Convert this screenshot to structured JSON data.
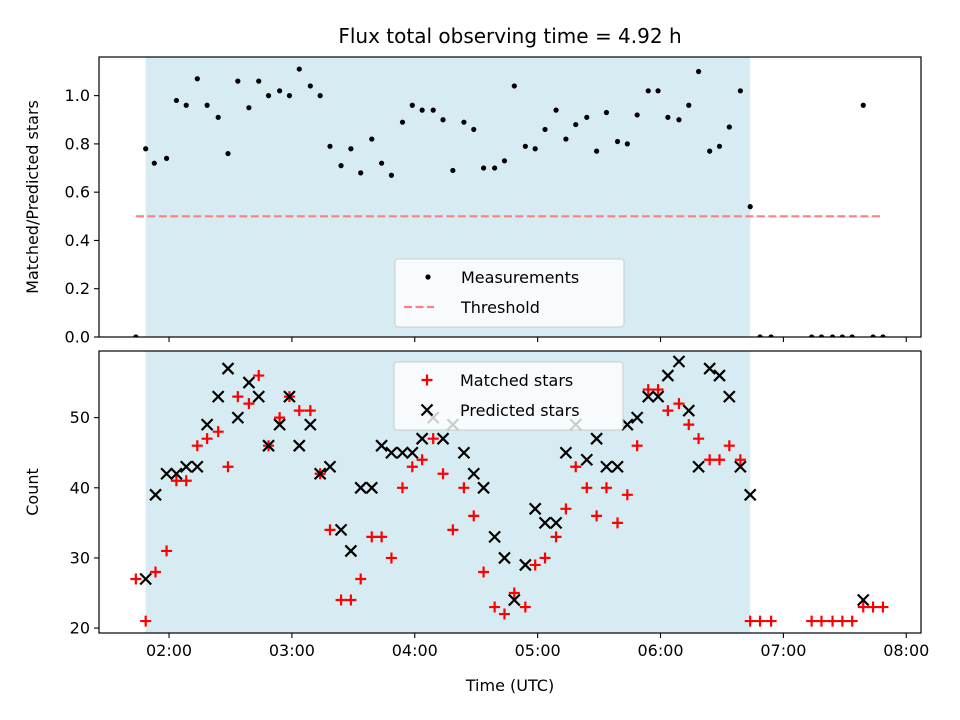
{
  "chart_data": {
    "title": "Flux total observing time = 4.92 h",
    "xlabel": "Time (UTC)",
    "x_unit": "hours (UTC)",
    "x_ticks": [
      {
        "value": 2,
        "label": "02:00"
      },
      {
        "value": 3,
        "label": "03:00"
      },
      {
        "value": 4,
        "label": "04:00"
      },
      {
        "value": 5,
        "label": "05:00"
      },
      {
        "value": 6,
        "label": "06:00"
      },
      {
        "value": 7,
        "label": "07:00"
      },
      {
        "value": 8,
        "label": "08:00"
      }
    ],
    "xlim": [
      1.43,
      8.12
    ],
    "observing_window": {
      "start": 1.81,
      "end": 6.73,
      "color": "#add8e6"
    },
    "panels": [
      {
        "type": "scatter",
        "ylabel": "Matched/Predicted stars",
        "ylim": [
          0,
          1.16
        ],
        "y_ticks": [
          {
            "value": 0.0,
            "label": "0.0"
          },
          {
            "value": 0.2,
            "label": "0.2"
          },
          {
            "value": 0.4,
            "label": "0.4"
          },
          {
            "value": 0.6,
            "label": "0.6"
          },
          {
            "value": 0.8,
            "label": "0.8"
          },
          {
            "value": 1.0,
            "label": "1.0"
          }
        ],
        "legend_position": "bottom-center",
        "legend": [
          {
            "label": "Measurements",
            "marker": "dot",
            "color": "#000000"
          },
          {
            "label": "Threshold",
            "marker": "dashed-line",
            "color": "#ff7f7f"
          }
        ],
        "threshold": {
          "y": 0.5,
          "x_start": 1.73,
          "x_end": 7.81
        },
        "series": [
          {
            "name": "Measurements",
            "color": "#000000",
            "points": [
              [
                1.73,
                0.0
              ],
              [
                1.81,
                0.78
              ],
              [
                1.88,
                0.72
              ],
              [
                1.98,
                0.74
              ],
              [
                2.06,
                0.98
              ],
              [
                2.14,
                0.96
              ],
              [
                2.23,
                1.07
              ],
              [
                2.31,
                0.96
              ],
              [
                2.4,
                0.91
              ],
              [
                2.48,
                0.76
              ],
              [
                2.56,
                1.06
              ],
              [
                2.65,
                0.95
              ],
              [
                2.73,
                1.06
              ],
              [
                2.81,
                1.0
              ],
              [
                2.9,
                1.02
              ],
              [
                2.98,
                1.0
              ],
              [
                3.06,
                1.11
              ],
              [
                3.15,
                1.04
              ],
              [
                3.23,
                1.0
              ],
              [
                3.31,
                0.79
              ],
              [
                3.4,
                0.71
              ],
              [
                3.48,
                0.78
              ],
              [
                3.56,
                0.68
              ],
              [
                3.65,
                0.82
              ],
              [
                3.73,
                0.72
              ],
              [
                3.81,
                0.67
              ],
              [
                3.9,
                0.89
              ],
              [
                3.98,
                0.96
              ],
              [
                4.06,
                0.94
              ],
              [
                4.15,
                0.94
              ],
              [
                4.23,
                0.9
              ],
              [
                4.31,
                0.69
              ],
              [
                4.4,
                0.89
              ],
              [
                4.48,
                0.86
              ],
              [
                4.56,
                0.7
              ],
              [
                4.65,
                0.7
              ],
              [
                4.73,
                0.73
              ],
              [
                4.81,
                1.04
              ],
              [
                4.9,
                0.79
              ],
              [
                4.98,
                0.78
              ],
              [
                5.06,
                0.86
              ],
              [
                5.15,
                0.94
              ],
              [
                5.23,
                0.82
              ],
              [
                5.31,
                0.88
              ],
              [
                5.4,
                0.91
              ],
              [
                5.48,
                0.77
              ],
              [
                5.56,
                0.93
              ],
              [
                5.65,
                0.81
              ],
              [
                5.73,
                0.8
              ],
              [
                5.81,
                0.92
              ],
              [
                5.9,
                1.02
              ],
              [
                5.98,
                1.02
              ],
              [
                6.06,
                0.91
              ],
              [
                6.15,
                0.9
              ],
              [
                6.23,
                0.96
              ],
              [
                6.31,
                1.1
              ],
              [
                6.4,
                0.77
              ],
              [
                6.48,
                0.79
              ],
              [
                6.56,
                0.87
              ],
              [
                6.65,
                1.02
              ],
              [
                6.73,
                0.54
              ],
              [
                6.81,
                0.0
              ],
              [
                6.9,
                0.0
              ],
              [
                7.23,
                0.0
              ],
              [
                7.31,
                0.0
              ],
              [
                7.4,
                0.0
              ],
              [
                7.48,
                0.0
              ],
              [
                7.56,
                0.0
              ],
              [
                7.65,
                0.96
              ],
              [
                7.73,
                0.0
              ],
              [
                7.81,
                0.0
              ]
            ]
          }
        ]
      },
      {
        "type": "scatter",
        "ylabel": "Count",
        "ylim": [
          19.3,
          59.5
        ],
        "y_ticks": [
          {
            "value": 20,
            "label": "20"
          },
          {
            "value": 30,
            "label": "30"
          },
          {
            "value": 40,
            "label": "40"
          },
          {
            "value": 50,
            "label": "50"
          }
        ],
        "legend_position": "top-center",
        "legend": [
          {
            "label": "Matched stars",
            "marker": "plus",
            "color": "#ff0000"
          },
          {
            "label": "Predicted stars",
            "marker": "x",
            "color": "#000000"
          }
        ],
        "series": [
          {
            "name": "Matched stars",
            "color": "#ff0000",
            "marker": "plus",
            "points": [
              [
                1.73,
                27
              ],
              [
                1.81,
                21
              ],
              [
                1.89,
                28
              ],
              [
                1.98,
                31
              ],
              [
                2.06,
                41
              ],
              [
                2.14,
                41
              ],
              [
                2.23,
                46
              ],
              [
                2.31,
                47
              ],
              [
                2.4,
                48
              ],
              [
                2.48,
                43
              ],
              [
                2.56,
                53
              ],
              [
                2.65,
                52
              ],
              [
                2.73,
                56
              ],
              [
                2.81,
                46
              ],
              [
                2.9,
                50
              ],
              [
                2.98,
                53
              ],
              [
                3.06,
                51
              ],
              [
                3.15,
                51
              ],
              [
                3.23,
                42
              ],
              [
                3.31,
                34
              ],
              [
                3.4,
                24
              ],
              [
                3.48,
                24
              ],
              [
                3.56,
                27
              ],
              [
                3.65,
                33
              ],
              [
                3.73,
                33
              ],
              [
                3.81,
                30
              ],
              [
                3.9,
                40
              ],
              [
                3.98,
                43
              ],
              [
                4.06,
                44
              ],
              [
                4.15,
                47
              ],
              [
                4.23,
                42
              ],
              [
                4.31,
                34
              ],
              [
                4.4,
                40
              ],
              [
                4.48,
                36
              ],
              [
                4.56,
                28
              ],
              [
                4.65,
                23
              ],
              [
                4.73,
                22
              ],
              [
                4.81,
                25
              ],
              [
                4.9,
                23
              ],
              [
                4.98,
                29
              ],
              [
                5.06,
                30
              ],
              [
                5.15,
                33
              ],
              [
                5.23,
                37
              ],
              [
                5.31,
                43
              ],
              [
                5.4,
                40
              ],
              [
                5.48,
                36
              ],
              [
                5.56,
                40
              ],
              [
                5.65,
                35
              ],
              [
                5.73,
                39
              ],
              [
                5.81,
                46
              ],
              [
                5.9,
                54
              ],
              [
                5.98,
                54
              ],
              [
                6.06,
                51
              ],
              [
                6.15,
                52
              ],
              [
                6.23,
                49
              ],
              [
                6.31,
                47
              ],
              [
                6.4,
                44
              ],
              [
                6.48,
                44
              ],
              [
                6.56,
                46
              ],
              [
                6.65,
                44
              ],
              [
                6.73,
                21
              ],
              [
                6.81,
                21
              ],
              [
                6.9,
                21
              ],
              [
                7.23,
                21
              ],
              [
                7.31,
                21
              ],
              [
                7.4,
                21
              ],
              [
                7.48,
                21
              ],
              [
                7.56,
                21
              ],
              [
                7.65,
                23
              ],
              [
                7.73,
                23
              ],
              [
                7.81,
                23
              ]
            ]
          },
          {
            "name": "Predicted stars",
            "color": "#000000",
            "marker": "x",
            "points": [
              [
                1.81,
                27
              ],
              [
                1.89,
                39
              ],
              [
                1.98,
                42
              ],
              [
                2.06,
                42
              ],
              [
                2.14,
                43
              ],
              [
                2.23,
                43
              ],
              [
                2.31,
                49
              ],
              [
                2.4,
                53
              ],
              [
                2.48,
                57
              ],
              [
                2.56,
                50
              ],
              [
                2.65,
                55
              ],
              [
                2.73,
                53
              ],
              [
                2.81,
                46
              ],
              [
                2.9,
                49
              ],
              [
                2.98,
                53
              ],
              [
                3.06,
                46
              ],
              [
                3.15,
                49
              ],
              [
                3.23,
                42
              ],
              [
                3.31,
                43
              ],
              [
                3.4,
                34
              ],
              [
                3.48,
                31
              ],
              [
                3.56,
                40
              ],
              [
                3.65,
                40
              ],
              [
                3.73,
                46
              ],
              [
                3.81,
                45
              ],
              [
                3.9,
                45
              ],
              [
                3.98,
                45
              ],
              [
                4.06,
                47
              ],
              [
                4.15,
                50
              ],
              [
                4.23,
                47
              ],
              [
                4.31,
                49
              ],
              [
                4.4,
                45
              ],
              [
                4.48,
                42
              ],
              [
                4.56,
                40
              ],
              [
                4.65,
                33
              ],
              [
                4.73,
                30
              ],
              [
                4.81,
                24
              ],
              [
                4.9,
                29
              ],
              [
                4.98,
                37
              ],
              [
                5.06,
                35
              ],
              [
                5.15,
                35
              ],
              [
                5.23,
                45
              ],
              [
                5.31,
                49
              ],
              [
                5.4,
                44
              ],
              [
                5.48,
                47
              ],
              [
                5.56,
                43
              ],
              [
                5.65,
                43
              ],
              [
                5.73,
                49
              ],
              [
                5.81,
                50
              ],
              [
                5.9,
                53
              ],
              [
                5.98,
                53
              ],
              [
                6.06,
                56
              ],
              [
                6.15,
                58
              ],
              [
                6.23,
                51
              ],
              [
                6.31,
                43
              ],
              [
                6.4,
                57
              ],
              [
                6.48,
                56
              ],
              [
                6.56,
                53
              ],
              [
                6.65,
                43
              ],
              [
                6.73,
                39
              ],
              [
                7.65,
                24
              ]
            ]
          }
        ]
      }
    ]
  }
}
